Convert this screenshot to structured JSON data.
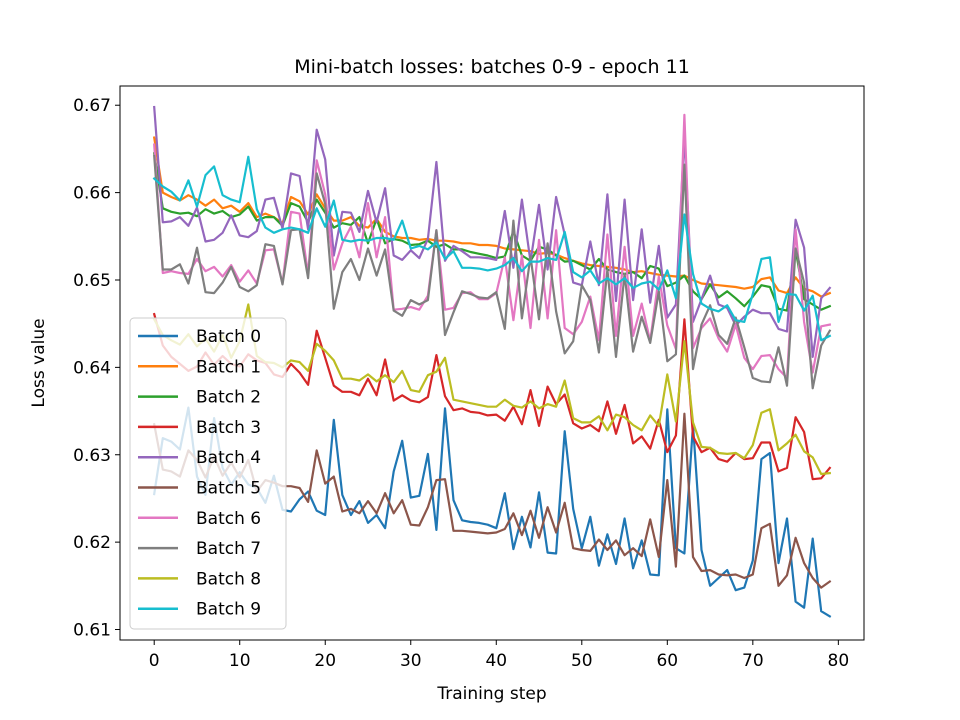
{
  "chart_data": {
    "type": "line",
    "title": "Mini-batch losses: batches 0-9 - epoch 11",
    "xlabel": "Training step",
    "ylabel": "Loss value",
    "xlim": [
      -4,
      83
    ],
    "ylim": [
      0.6088,
      0.6722
    ],
    "xticks": [
      0,
      10,
      20,
      30,
      40,
      50,
      60,
      70,
      80
    ],
    "yticks": [
      0.61,
      0.62,
      0.63,
      0.64,
      0.65,
      0.66,
      0.67
    ],
    "ytick_labels": [
      "0.61",
      "0.62",
      "0.63",
      "0.64",
      "0.65",
      "0.66",
      "0.67"
    ],
    "grid": false,
    "legend_position": "lower-left",
    "series": [
      {
        "name": "Batch 0",
        "color": "#1f77b4",
        "values": [
          0.6255,
          0.6319,
          0.6315,
          0.6306,
          0.6354,
          0.6275,
          0.6254,
          0.6342,
          0.6285,
          0.6266,
          0.628,
          0.6266,
          0.6262,
          0.6245,
          0.6276,
          0.6237,
          0.6235,
          0.6249,
          0.6258,
          0.6236,
          0.6231,
          0.634,
          0.6254,
          0.6231,
          0.6247,
          0.6222,
          0.6231,
          0.6216,
          0.6281,
          0.6316,
          0.6251,
          0.6253,
          0.6301,
          0.6214,
          0.6353,
          0.6248,
          0.6225,
          0.6223,
          0.6222,
          0.622,
          0.6216,
          0.6256,
          0.6192,
          0.6229,
          0.6194,
          0.6257,
          0.6188,
          0.6187,
          0.6327,
          0.6238,
          0.6193,
          0.6229,
          0.6173,
          0.6209,
          0.6175,
          0.6227,
          0.617,
          0.6202,
          0.6163,
          0.6162,
          0.6352,
          0.6193,
          0.6187,
          0.6334,
          0.6191,
          0.615,
          0.6159,
          0.6168,
          0.6145,
          0.6148,
          0.6179,
          0.6295,
          0.6302,
          0.6176,
          0.6227,
          0.6132,
          0.6125,
          0.6204,
          0.6121,
          0.6115
        ]
      },
      {
        "name": "Batch 1",
        "color": "#ff7f0e",
        "values": [
          0.6663,
          0.66,
          0.6595,
          0.6591,
          0.6597,
          0.6592,
          0.6585,
          0.6592,
          0.6582,
          0.6585,
          0.6578,
          0.6588,
          0.6572,
          0.6576,
          0.6572,
          0.6565,
          0.6595,
          0.659,
          0.6575,
          0.6598,
          0.6582,
          0.6568,
          0.6568,
          0.6572,
          0.6562,
          0.656,
          0.657,
          0.6555,
          0.655,
          0.6548,
          0.6548,
          0.6546,
          0.6547,
          0.6545,
          0.6545,
          0.6544,
          0.6542,
          0.6542,
          0.654,
          0.654,
          0.6539,
          0.6536,
          0.6535,
          0.6534,
          0.6533,
          0.653,
          0.6531,
          0.6529,
          0.6525,
          0.6522,
          0.6519,
          0.6517,
          0.6516,
          0.6515,
          0.6514,
          0.6512,
          0.6509,
          0.651,
          0.6508,
          0.6506,
          0.6505,
          0.6504,
          0.6505,
          0.65,
          0.6496,
          0.6495,
          0.6494,
          0.6493,
          0.6492,
          0.649,
          0.6492,
          0.6501,
          0.6503,
          0.6488,
          0.6485,
          0.6503,
          0.649,
          0.6487,
          0.6481,
          0.6485
        ]
      },
      {
        "name": "Batch 2",
        "color": "#2ca02c",
        "values": [
          0.6645,
          0.6582,
          0.6578,
          0.6576,
          0.6577,
          0.6573,
          0.6581,
          0.6576,
          0.6579,
          0.6572,
          0.6575,
          0.6584,
          0.6568,
          0.6572,
          0.6572,
          0.6562,
          0.6588,
          0.6584,
          0.6566,
          0.6592,
          0.6577,
          0.656,
          0.6565,
          0.6563,
          0.6572,
          0.6542,
          0.657,
          0.6542,
          0.6547,
          0.6545,
          0.654,
          0.6541,
          0.6545,
          0.6538,
          0.6541,
          0.6535,
          0.6535,
          0.6532,
          0.653,
          0.6528,
          0.6525,
          0.6527,
          0.6556,
          0.6528,
          0.6522,
          0.6538,
          0.6535,
          0.6528,
          0.6521,
          0.6522,
          0.6517,
          0.6512,
          0.6524,
          0.6512,
          0.6509,
          0.6507,
          0.6509,
          0.6502,
          0.6516,
          0.6513,
          0.6493,
          0.6497,
          0.6505,
          0.6487,
          0.6478,
          0.6495,
          0.648,
          0.6487,
          0.6479,
          0.647,
          0.6481,
          0.6494,
          0.6492,
          0.6467,
          0.6465,
          0.6535,
          0.6478,
          0.6472,
          0.6466,
          0.647
        ]
      },
      {
        "name": "Batch 3",
        "color": "#d62728",
        "values": [
          0.6461,
          0.6425,
          0.6412,
          0.6404,
          0.6396,
          0.6401,
          0.6417,
          0.6403,
          0.6413,
          0.6404,
          0.6401,
          0.6415,
          0.6408,
          0.6405,
          0.6392,
          0.6389,
          0.6404,
          0.6394,
          0.638,
          0.6442,
          0.6411,
          0.6379,
          0.6372,
          0.6372,
          0.6368,
          0.6387,
          0.6368,
          0.6409,
          0.6362,
          0.6368,
          0.6362,
          0.636,
          0.6366,
          0.6414,
          0.6367,
          0.6351,
          0.6353,
          0.6349,
          0.6348,
          0.6345,
          0.6346,
          0.6339,
          0.6355,
          0.6335,
          0.6374,
          0.6333,
          0.6378,
          0.6358,
          0.6369,
          0.6336,
          0.633,
          0.6334,
          0.6327,
          0.6361,
          0.6324,
          0.6357,
          0.6313,
          0.6321,
          0.6307,
          0.634,
          0.6303,
          0.6322,
          0.6455,
          0.6321,
          0.6303,
          0.6308,
          0.6295,
          0.6292,
          0.6302,
          0.6295,
          0.6296,
          0.6314,
          0.6314,
          0.6281,
          0.6285,
          0.6343,
          0.6326,
          0.6272,
          0.6273,
          0.6285
        ]
      },
      {
        "name": "Batch 4",
        "color": "#9467bd",
        "values": [
          0.6698,
          0.6566,
          0.6567,
          0.6572,
          0.6562,
          0.6583,
          0.6544,
          0.6546,
          0.6554,
          0.6574,
          0.6551,
          0.6549,
          0.6556,
          0.6592,
          0.6594,
          0.6559,
          0.6622,
          0.6619,
          0.6558,
          0.6672,
          0.6638,
          0.6528,
          0.6578,
          0.6577,
          0.6555,
          0.6602,
          0.6566,
          0.6605,
          0.6528,
          0.6523,
          0.6534,
          0.6525,
          0.6547,
          0.6635,
          0.6522,
          0.6539,
          0.6533,
          0.6526,
          0.6526,
          0.6525,
          0.6523,
          0.6579,
          0.6514,
          0.6592,
          0.6521,
          0.6586,
          0.6512,
          0.6595,
          0.6552,
          0.6497,
          0.6494,
          0.6544,
          0.6494,
          0.6598,
          0.6476,
          0.6592,
          0.6477,
          0.6558,
          0.6474,
          0.6539,
          0.6457,
          0.6472,
          0.6667,
          0.6452,
          0.6478,
          0.6505,
          0.6472,
          0.6468,
          0.6448,
          0.6458,
          0.6466,
          0.6462,
          0.6462,
          0.6444,
          0.6441,
          0.6569,
          0.6537,
          0.6412,
          0.6479,
          0.6491
        ]
      },
      {
        "name": "Batch 5",
        "color": "#8c564b",
        "values": [
          0.6335,
          0.6283,
          0.6281,
          0.6275,
          0.6305,
          0.6294,
          0.6274,
          0.6298,
          0.6276,
          0.6291,
          0.6274,
          0.6294,
          0.6258,
          0.6271,
          0.6268,
          0.6264,
          0.6264,
          0.6262,
          0.6246,
          0.6305,
          0.6267,
          0.6275,
          0.6235,
          0.6238,
          0.6233,
          0.6247,
          0.6233,
          0.6256,
          0.6233,
          0.6248,
          0.622,
          0.6219,
          0.624,
          0.6271,
          0.6272,
          0.6213,
          0.6213,
          0.6212,
          0.6211,
          0.621,
          0.6211,
          0.6215,
          0.6233,
          0.6208,
          0.6236,
          0.6205,
          0.624,
          0.6211,
          0.6245,
          0.6193,
          0.6191,
          0.619,
          0.6203,
          0.6191,
          0.6202,
          0.6185,
          0.6193,
          0.6184,
          0.6226,
          0.6183,
          0.6271,
          0.6172,
          0.6347,
          0.6183,
          0.6167,
          0.6168,
          0.6163,
          0.6162,
          0.6163,
          0.6159,
          0.6163,
          0.6216,
          0.6221,
          0.615,
          0.6162,
          0.6205,
          0.6176,
          0.6159,
          0.6148,
          0.6155
        ]
      },
      {
        "name": "Batch 6",
        "color": "#e377c2",
        "values": [
          0.6655,
          0.6508,
          0.651,
          0.6508,
          0.6507,
          0.6524,
          0.651,
          0.6515,
          0.6504,
          0.6517,
          0.6498,
          0.6511,
          0.6496,
          0.6534,
          0.6535,
          0.6496,
          0.6578,
          0.6576,
          0.6506,
          0.6637,
          0.6598,
          0.6512,
          0.6542,
          0.6561,
          0.6526,
          0.6588,
          0.6526,
          0.6572,
          0.6466,
          0.6467,
          0.6469,
          0.6466,
          0.6482,
          0.6557,
          0.6466,
          0.6468,
          0.6485,
          0.6486,
          0.6478,
          0.6478,
          0.6485,
          0.6526,
          0.6454,
          0.6528,
          0.6445,
          0.6546,
          0.6456,
          0.6557,
          0.6445,
          0.6438,
          0.6452,
          0.6481,
          0.6431,
          0.6552,
          0.6436,
          0.6538,
          0.6436,
          0.6473,
          0.643,
          0.6504,
          0.6448,
          0.6421,
          0.6689,
          0.6422,
          0.6445,
          0.6456,
          0.6433,
          0.6418,
          0.6449,
          0.6411,
          0.6398,
          0.6413,
          0.6414,
          0.6398,
          0.6388,
          0.6558,
          0.6452,
          0.6394,
          0.6447,
          0.6449
        ]
      },
      {
        "name": "Batch 7",
        "color": "#7f7f7f",
        "values": [
          0.6642,
          0.6512,
          0.6512,
          0.6518,
          0.6496,
          0.6537,
          0.6486,
          0.6485,
          0.6497,
          0.6515,
          0.6492,
          0.6487,
          0.6494,
          0.6541,
          0.6539,
          0.6495,
          0.6557,
          0.6558,
          0.6502,
          0.6622,
          0.6587,
          0.6467,
          0.6509,
          0.6524,
          0.65,
          0.6536,
          0.6505,
          0.6535,
          0.6465,
          0.6459,
          0.6477,
          0.6472,
          0.6477,
          0.6557,
          0.6437,
          0.6463,
          0.6487,
          0.6484,
          0.648,
          0.6479,
          0.6486,
          0.6444,
          0.6568,
          0.6456,
          0.6527,
          0.6455,
          0.6542,
          0.6464,
          0.6416,
          0.643,
          0.6494,
          0.6477,
          0.6417,
          0.6512,
          0.6412,
          0.6507,
          0.6418,
          0.6458,
          0.6428,
          0.6487,
          0.6407,
          0.6415,
          0.6632,
          0.6398,
          0.6449,
          0.6471,
          0.6437,
          0.6427,
          0.6457,
          0.6423,
          0.6388,
          0.6384,
          0.6383,
          0.6423,
          0.6379,
          0.6536,
          0.6497,
          0.6376,
          0.6425,
          0.6442
        ]
      },
      {
        "name": "Batch 8",
        "color": "#bcbd22",
        "values": [
          0.6455,
          0.6437,
          0.6431,
          0.6426,
          0.6438,
          0.6424,
          0.6433,
          0.6418,
          0.6437,
          0.6411,
          0.643,
          0.6472,
          0.6413,
          0.6406,
          0.6405,
          0.64,
          0.6408,
          0.6406,
          0.6396,
          0.6427,
          0.6419,
          0.6408,
          0.6387,
          0.6387,
          0.6385,
          0.6392,
          0.6384,
          0.6391,
          0.6383,
          0.6396,
          0.6374,
          0.6372,
          0.6391,
          0.6395,
          0.6411,
          0.6363,
          0.6361,
          0.6359,
          0.6357,
          0.6355,
          0.6355,
          0.6363,
          0.6356,
          0.6354,
          0.6361,
          0.6353,
          0.6358,
          0.6355,
          0.6385,
          0.6342,
          0.6337,
          0.6337,
          0.6344,
          0.6328,
          0.6346,
          0.6343,
          0.6334,
          0.6328,
          0.6345,
          0.6333,
          0.6392,
          0.6338,
          0.643,
          0.6337,
          0.6309,
          0.6308,
          0.6302,
          0.6301,
          0.6302,
          0.6296,
          0.6311,
          0.6348,
          0.6352,
          0.6305,
          0.6313,
          0.6323,
          0.6304,
          0.6297,
          0.6278,
          0.6279
        ]
      },
      {
        "name": "Batch 9",
        "color": "#17becf",
        "values": [
          0.6616,
          0.6607,
          0.6601,
          0.6591,
          0.6614,
          0.6584,
          0.662,
          0.663,
          0.6597,
          0.6592,
          0.6589,
          0.6641,
          0.6581,
          0.656,
          0.6554,
          0.6558,
          0.656,
          0.6558,
          0.6554,
          0.6582,
          0.6561,
          0.6591,
          0.6546,
          0.6544,
          0.6546,
          0.6545,
          0.6548,
          0.6548,
          0.6546,
          0.6568,
          0.6536,
          0.6539,
          0.6535,
          0.6543,
          0.6524,
          0.6533,
          0.6514,
          0.6514,
          0.6513,
          0.6511,
          0.6513,
          0.6517,
          0.6525,
          0.651,
          0.6521,
          0.6521,
          0.6525,
          0.6523,
          0.6555,
          0.6509,
          0.6503,
          0.6511,
          0.6496,
          0.6502,
          0.6495,
          0.6502,
          0.6491,
          0.6496,
          0.6498,
          0.6489,
          0.6511,
          0.6479,
          0.6575,
          0.6507,
          0.6473,
          0.6467,
          0.6464,
          0.6471,
          0.6454,
          0.6452,
          0.6484,
          0.6524,
          0.6526,
          0.6452,
          0.6484,
          0.6483,
          0.6465,
          0.6482,
          0.6431,
          0.6436
        ]
      }
    ]
  }
}
